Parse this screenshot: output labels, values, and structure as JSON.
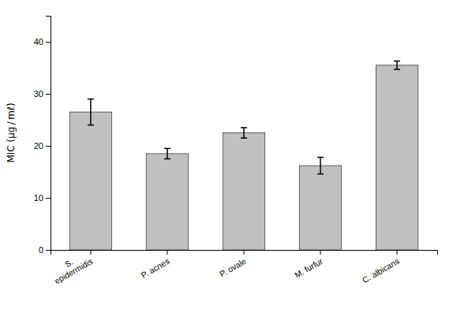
{
  "chart_data": {
    "type": "bar",
    "categories": [
      "S.\nepidermidis",
      "P. acnes",
      "P. ovale",
      "M. furfur",
      "C. albicans"
    ],
    "values": [
      26.5,
      18.5,
      22.5,
      16.2,
      35.5
    ],
    "errors": [
      2.5,
      1.0,
      1.0,
      1.6,
      0.8
    ],
    "color": "#C0C0C0",
    "ylabel": "MIC (μg / mℓ)",
    "ylim": [
      0,
      45
    ],
    "yticks": [
      0,
      10,
      20,
      30,
      40
    ],
    "grid": false
  }
}
